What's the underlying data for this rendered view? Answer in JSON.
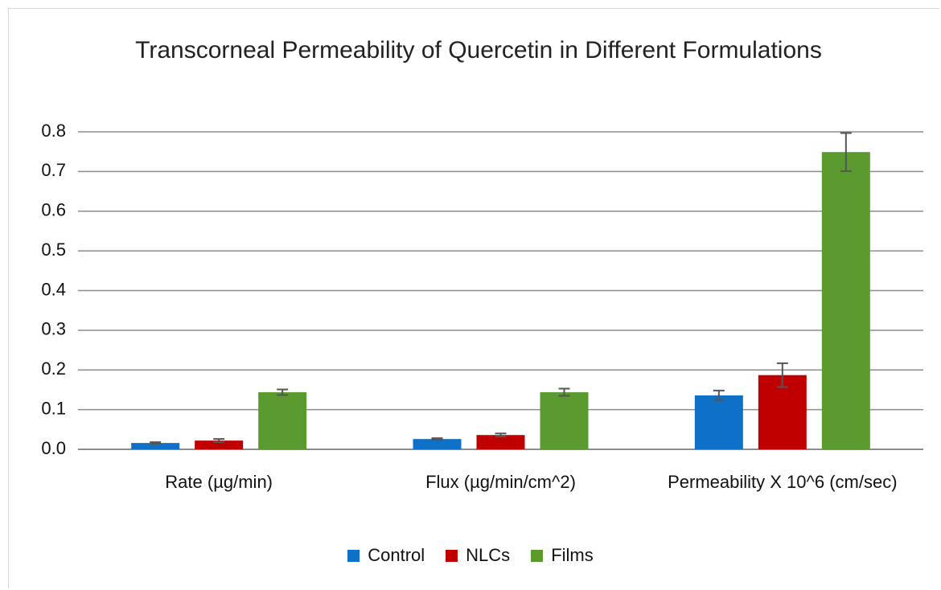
{
  "chart_data": {
    "type": "bar",
    "title": "Transcorneal Permeability of Quercetin in Different Formulations",
    "categories": [
      "Rate (µg/min)",
      "Flux (µg/min/cm^2)",
      "Permeability X 10^6 (cm/sec)"
    ],
    "series": [
      {
        "name": "Control",
        "color": "#0f70c8",
        "values": [
          0.016,
          0.026,
          0.136
        ],
        "errors": [
          0.002,
          0.002,
          0.012
        ]
      },
      {
        "name": "NLCs",
        "color": "#c00000",
        "values": [
          0.022,
          0.036,
          0.187
        ],
        "errors": [
          0.004,
          0.004,
          0.03
        ]
      },
      {
        "name": "Films",
        "color": "#5b9a2f",
        "values": [
          0.144,
          0.144,
          0.749
        ],
        "errors": [
          0.007,
          0.009,
          0.048
        ]
      }
    ],
    "ylim": [
      0,
      0.8
    ],
    "yticks": [
      {
        "value": 0,
        "label": "0.0"
      },
      0.1,
      0.2,
      0.3,
      0.4,
      0.5,
      0.6,
      0.7,
      0.8
    ],
    "grid": true,
    "legend": "bottom"
  }
}
